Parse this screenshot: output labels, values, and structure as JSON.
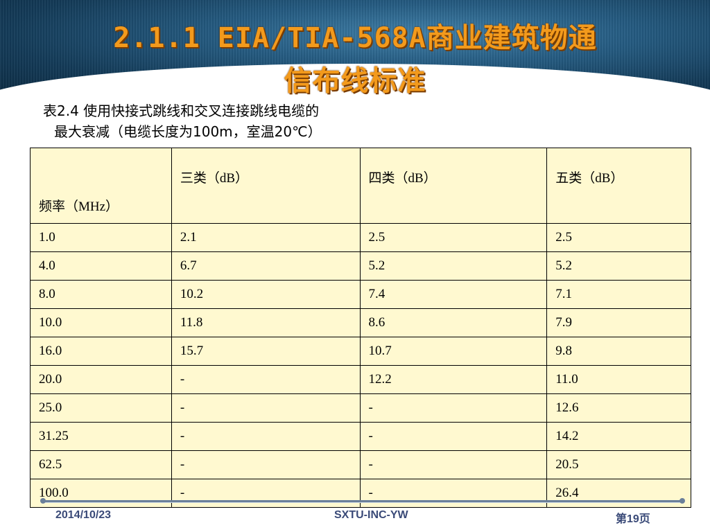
{
  "slide": {
    "title_line1": "2.1.1 EIA/TIA-568A商业建筑物通",
    "title_line2": "信布线标准",
    "caption_line1": "表2.4 使用快接式跳线和交叉连接跳线电缆的",
    "caption_line2": "最大衰减（电缆长度为100m，室温20℃）"
  },
  "table": {
    "headers": [
      "频率（MHz）",
      "三类（dB）",
      "四类（dB）",
      "五类（dB）"
    ],
    "rows": [
      [
        "1.0",
        "2.1",
        "2.5",
        "2.5"
      ],
      [
        "4.0",
        "6.7",
        "5.2",
        "5.2"
      ],
      [
        "8.0",
        "10.2",
        "7.4",
        "7.1"
      ],
      [
        "10.0",
        "11.8",
        "8.6",
        "7.9"
      ],
      [
        "16.0",
        "15.7",
        "10.7",
        "9.8"
      ],
      [
        "20.0",
        "-",
        "12.2",
        "11.0"
      ],
      [
        "25.0",
        "-",
        "-",
        "12.6"
      ],
      [
        "31.25",
        "-",
        "-",
        "14.2"
      ],
      [
        "62.5",
        "-",
        "-",
        "20.5"
      ],
      [
        "100.0",
        "-",
        "-",
        "26.4"
      ]
    ]
  },
  "footer": {
    "date": "2014/10/23",
    "center": "SXTU-INC-YW",
    "page": "第19页"
  },
  "colors": {
    "title": "#f39a1c",
    "table_bg": "#fff9d0",
    "footer_text": "#3a4a78"
  }
}
